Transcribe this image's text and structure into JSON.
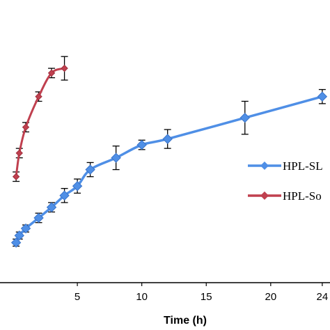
{
  "chart_data": {
    "type": "line",
    "xlabel": "Time (h)",
    "ylabel": "",
    "xlim": [
      -1,
      24.6
    ],
    "ylim": [
      0,
      120
    ],
    "x_ticks": [
      5,
      10,
      15,
      20,
      24
    ],
    "x_tick_labels": [
      "5",
      "10",
      "15",
      "20",
      "24"
    ],
    "grid": false,
    "legend_position": "right",
    "series": [
      {
        "name": "HPL-SL",
        "color": "#4f8fe6",
        "marker": "diamond",
        "x": [
          0.25,
          0.5,
          1,
          2,
          3,
          4,
          5,
          6,
          8,
          10,
          12,
          18,
          24
        ],
        "y": [
          17,
          20,
          23,
          27.5,
          32,
          37,
          41,
          48,
          53,
          58.5,
          61,
          70,
          79
        ],
        "err": [
          1.5,
          1.5,
          1.5,
          2,
          2,
          3,
          3,
          3,
          5,
          2,
          4,
          7,
          3
        ]
      },
      {
        "name": "HPL-So",
        "color": "#c0404f",
        "marker": "diamond",
        "x": [
          0.25,
          0.5,
          1,
          2,
          3,
          4
        ],
        "y": [
          45,
          55,
          66,
          79,
          89,
          91
        ],
        "err": [
          2,
          2,
          2,
          2,
          2,
          5
        ]
      }
    ]
  }
}
